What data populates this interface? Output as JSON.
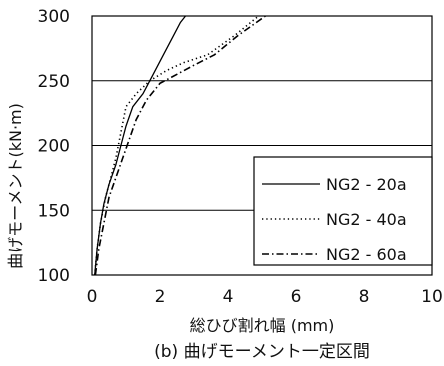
{
  "chart_data": {
    "type": "line",
    "xlabel": "総ひび割れ幅 (mm)",
    "ylabel": "曲げモーメント(kN·m)",
    "xlim": [
      0,
      10
    ],
    "ylim": [
      100,
      300
    ],
    "xticks": [
      "0",
      "2",
      "4",
      "6",
      "8",
      "10"
    ],
    "yticks": [
      "100",
      "150",
      "200",
      "250",
      "300"
    ],
    "grid": "horizontal",
    "legend_position": "right",
    "caption": "(b) 曲げモーメント一定区間",
    "colors": {
      "line": "#000000",
      "grid": "#000000",
      "background": "#ffffff"
    },
    "series": [
      {
        "name": "NG2 - 20a",
        "style": "solid",
        "x": [
          0.08,
          0.15,
          0.25,
          0.35,
          0.5,
          0.7,
          0.85,
          1.0,
          1.2,
          1.5,
          1.8,
          2.1,
          2.4,
          2.6,
          2.75
        ],
        "y": [
          100,
          120,
          140,
          155,
          170,
          185,
          200,
          215,
          230,
          240,
          255,
          270,
          285,
          295,
          300
        ]
      },
      {
        "name": "NG2 - 40a",
        "style": "dotted",
        "x": [
          0.08,
          0.15,
          0.25,
          0.4,
          0.55,
          0.7,
          0.85,
          1.0,
          1.3,
          1.7,
          2.2,
          2.7,
          3.4,
          4.2,
          4.9
        ],
        "y": [
          100,
          120,
          140,
          160,
          175,
          190,
          210,
          230,
          240,
          250,
          258,
          264,
          270,
          285,
          300
        ]
      },
      {
        "name": "NG2 - 60a",
        "style": "dashdot",
        "x": [
          0.1,
          0.2,
          0.35,
          0.5,
          0.7,
          0.9,
          1.1,
          1.3,
          1.6,
          2.0,
          2.5,
          3.0,
          3.6,
          4.3,
          5.1
        ],
        "y": [
          100,
          120,
          140,
          160,
          175,
          190,
          205,
          220,
          235,
          248,
          255,
          262,
          270,
          285,
          300
        ]
      }
    ]
  }
}
